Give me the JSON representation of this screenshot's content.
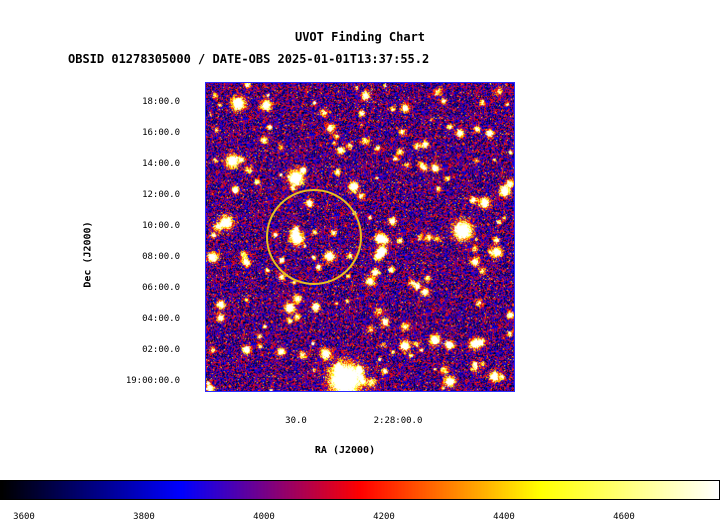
{
  "header": {
    "title": "UVOT Finding Chart",
    "subtitle": "OBSID 01278305000 / DATE-OBS 2025-01-01T13:37:55.2"
  },
  "axes": {
    "ylabel": "Dec (J2000)",
    "xlabel": "RA (J2000)"
  },
  "chart_data": {
    "type": "heatmap",
    "title": "UVOT Finding Chart",
    "subtitle": "OBSID 01278305000 / DATE-OBS 2025-01-01T13:37:55.2",
    "xlabel": "RA (J2000)",
    "ylabel": "Dec (J2000)",
    "y_ticks": [
      "18:00.0",
      "16:00.0",
      "14:00.0",
      "12:00.0",
      "10:00.0",
      "08:00.0",
      "06:00.0",
      "04:00.0",
      "02:00.0",
      "19:00:00.0"
    ],
    "x_ticks": [
      "30.0",
      "2:28:00.0"
    ],
    "colorbar": {
      "ticks": [
        3600,
        3800,
        4000,
        4200,
        4400,
        4600
      ],
      "range": [
        3560,
        4760
      ],
      "colormap": [
        "#000000",
        "#0000ff",
        "#ff0000",
        "#ffff00",
        "#ffffff"
      ]
    },
    "region": {
      "shape": "circle",
      "color": "#e8c020"
    }
  }
}
